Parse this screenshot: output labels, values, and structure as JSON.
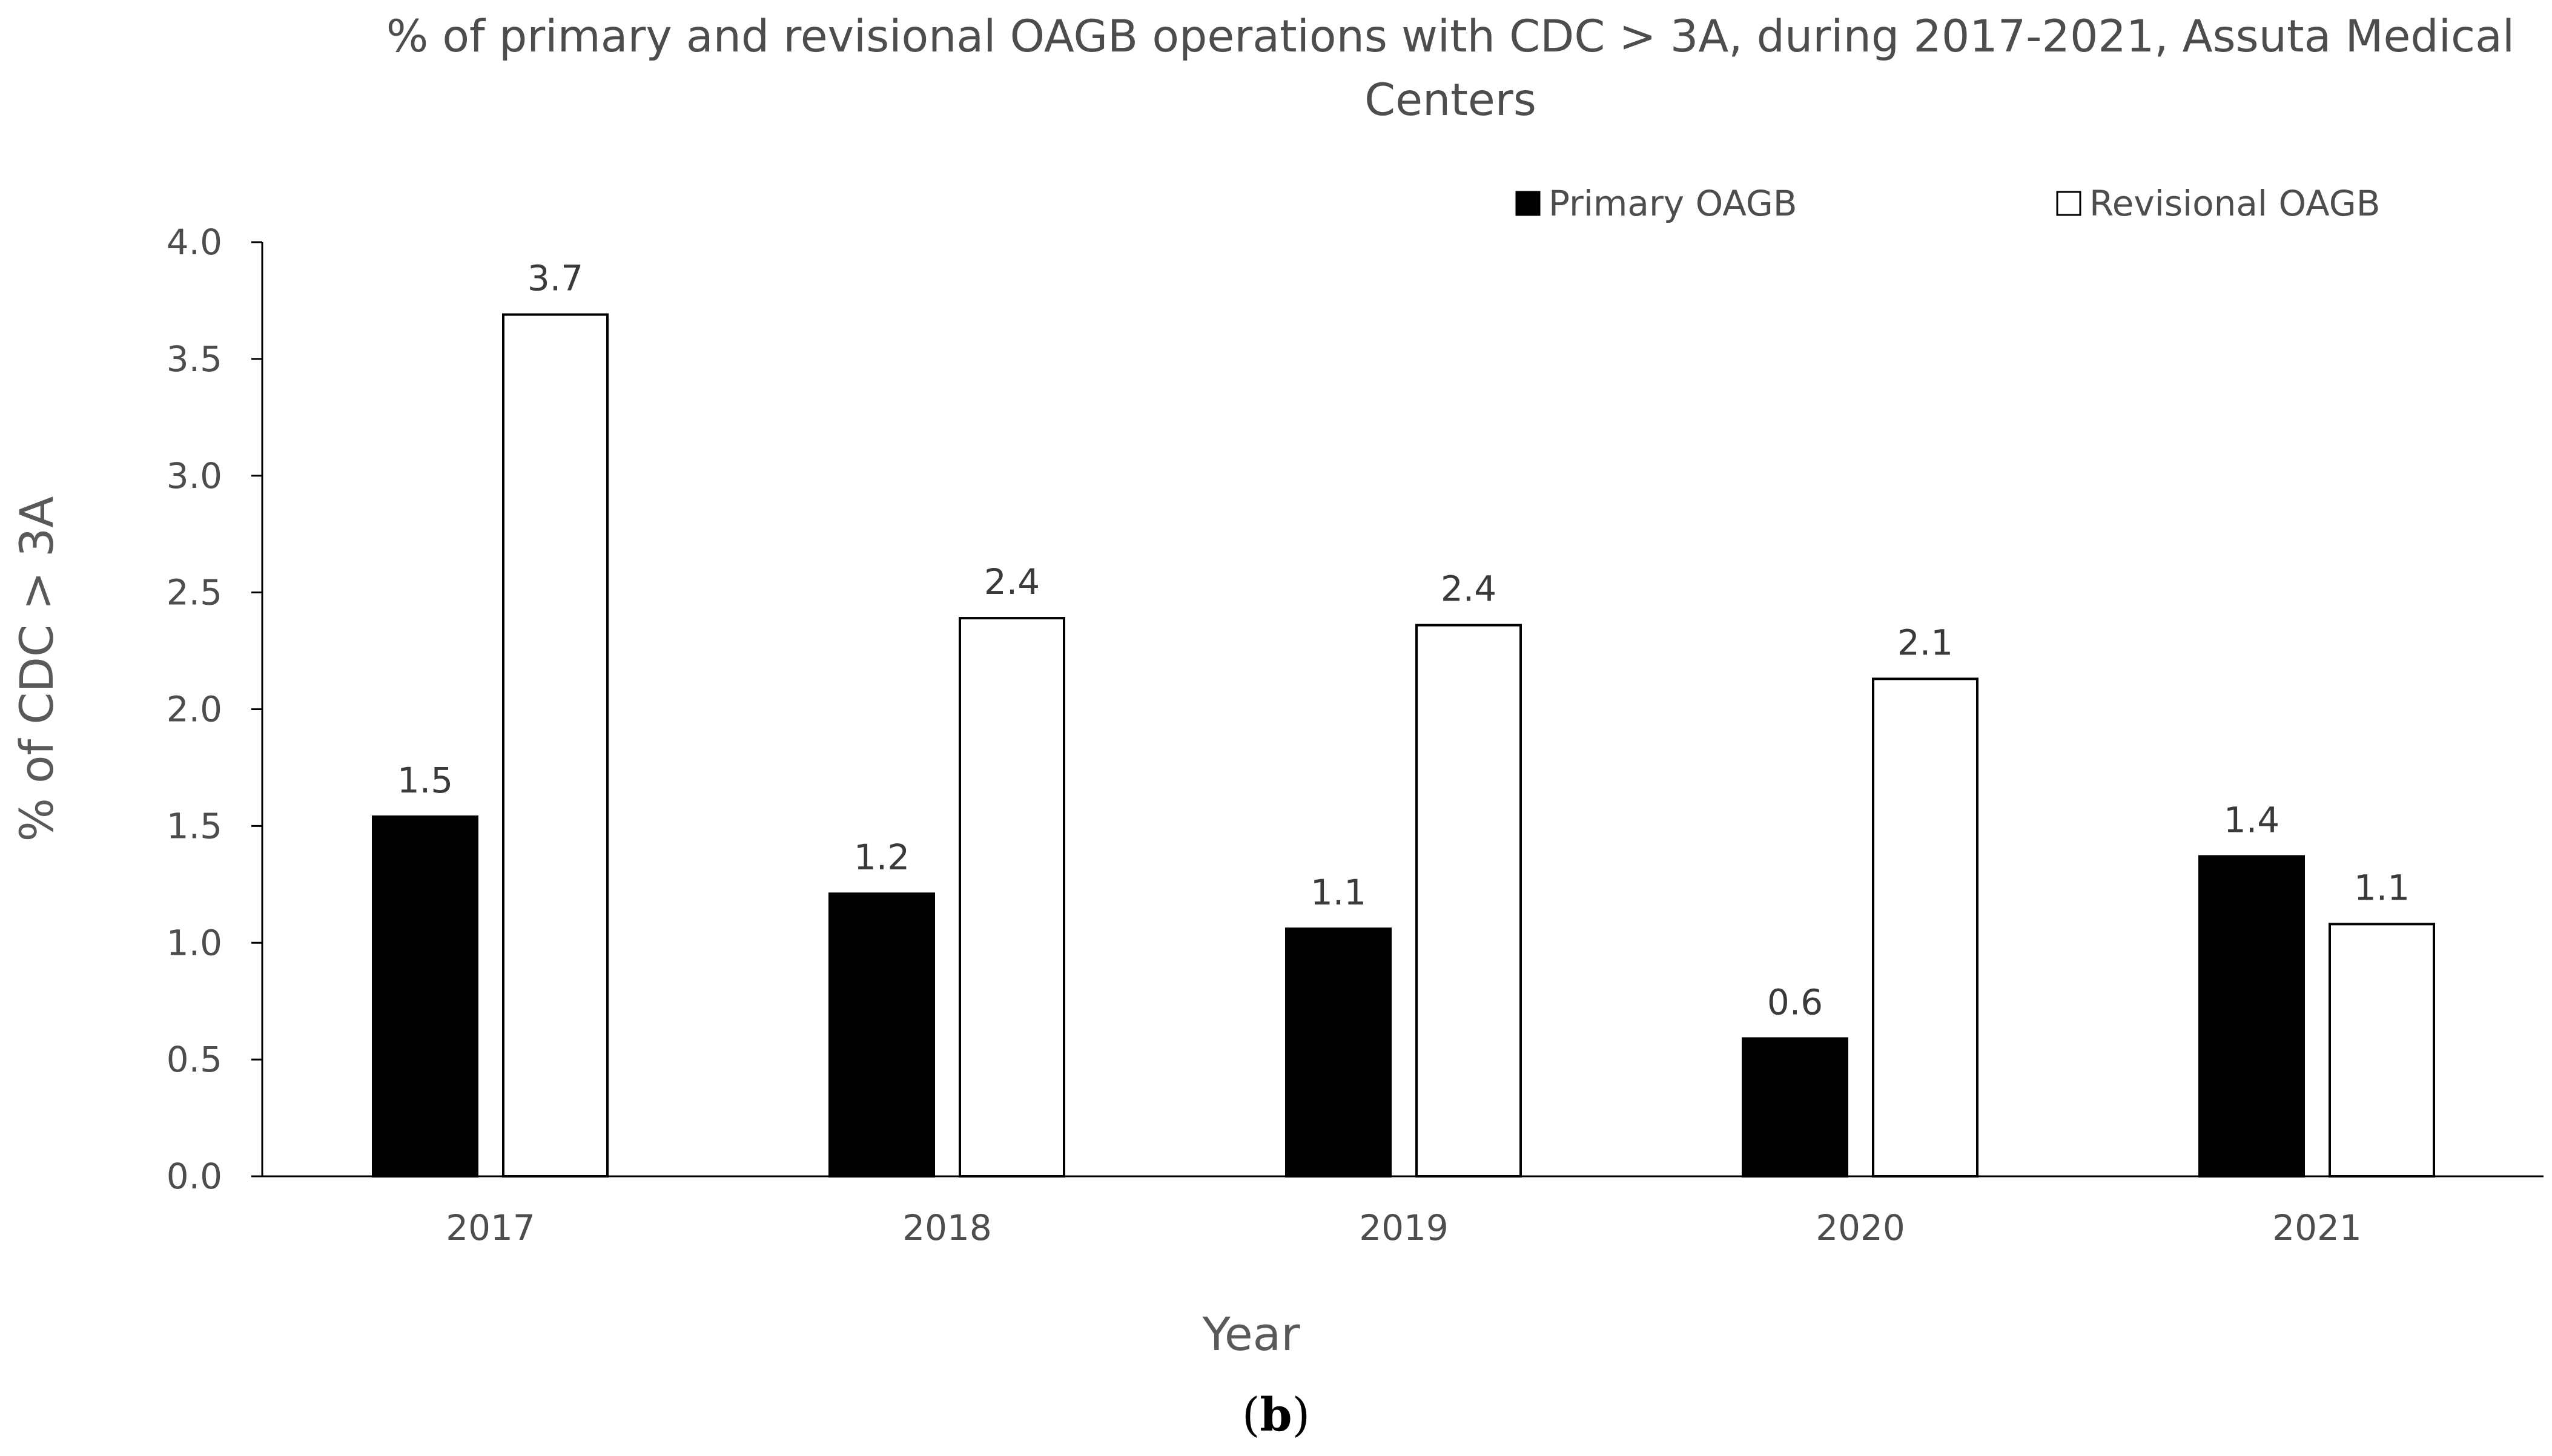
{
  "chart_data": {
    "type": "bar",
    "title": "% of primary and revisional OAGB operations with CDC > 3A, during 2017-2021,  Assuta Medical Centers",
    "title_lines": [
      "% of primary and revisional OAGB operations with CDC > 3A, during 2017-2021,  Assuta Medical",
      "Centers"
    ],
    "xlabel": "Year",
    "ylabel": "% of CDC > 3A",
    "categories": [
      "2017",
      "2018",
      "2019",
      "2020",
      "2021"
    ],
    "series": [
      {
        "name": "Primary OAGB",
        "values": [
          1.54,
          1.21,
          1.06,
          0.59,
          1.37
        ],
        "labels": [
          "1.5",
          "1.2",
          "1.1",
          "0.6",
          "1.4"
        ],
        "fill": "#000000",
        "stroke": "#000000"
      },
      {
        "name": "Revisional OAGB",
        "values": [
          3.69,
          2.39,
          2.36,
          2.13,
          1.08
        ],
        "labels": [
          "3.7",
          "2.4",
          "2.4",
          "2.1",
          "1.1"
        ],
        "fill": "#ffffff",
        "stroke": "#000000"
      }
    ],
    "ylim": [
      0,
      4.0
    ],
    "yticks": [
      "0.0",
      "0.5",
      "1.0",
      "1.5",
      "2.0",
      "2.5",
      "3.0",
      "3.5",
      "4.0"
    ],
    "grid": false,
    "legend_position": "top-right"
  },
  "caption": {
    "prefix": "(",
    "letter": "b",
    "suffix": ")"
  }
}
